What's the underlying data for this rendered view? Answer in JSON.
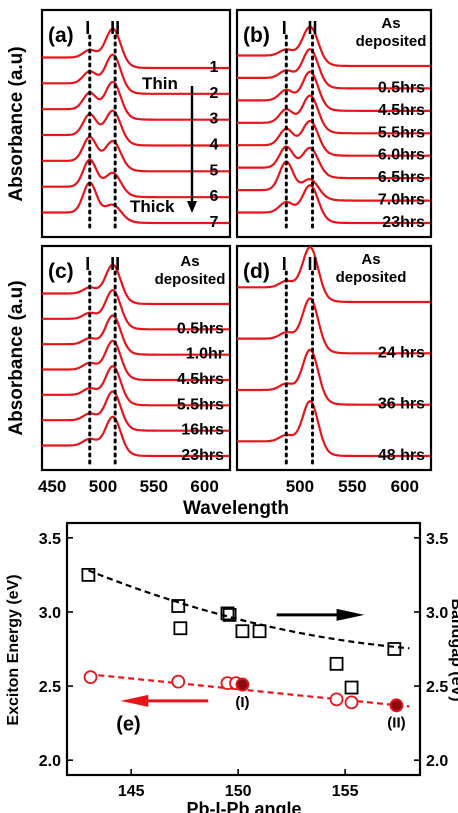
{
  "chart_data": [
    {
      "type": "line",
      "panel": "(a)",
      "peak_labels": [
        "I",
        "II"
      ],
      "series_labels": [
        "1",
        "2",
        "3",
        "4",
        "5",
        "6",
        "7"
      ],
      "annotations": [
        "Thin",
        "Thick"
      ],
      "peak_wavelengths": [
        487,
        512
      ],
      "xlim": [
        440,
        625
      ]
    },
    {
      "type": "line",
      "panel": "(b)",
      "peak_labels": [
        "I",
        "II"
      ],
      "series_labels": [
        "As\ndeposited",
        "0.5hrs",
        "4.5hrs",
        "5.5hrs",
        "6.0hrs",
        "6.5hrs",
        "7.0hrs",
        "23hrs"
      ],
      "peak_wavelengths": [
        487,
        512
      ],
      "xlim": [
        440,
        625
      ]
    },
    {
      "type": "line",
      "panel": "(c)",
      "peak_labels": [
        "I",
        "II"
      ],
      "series_labels": [
        "As\ndeposited",
        "0.5hrs",
        "1.0hr",
        "4.5hrs",
        "5.5hrs",
        "16hrs",
        "23hrs"
      ],
      "xlabel": "Wavelength",
      "ylabel": "Absorbance (a.u)",
      "xticks": [
        450,
        500,
        550,
        600
      ],
      "peak_wavelengths": [
        487,
        512
      ],
      "xlim": [
        440,
        625
      ]
    },
    {
      "type": "line",
      "panel": "(d)",
      "peak_labels": [
        "I",
        "II"
      ],
      "series_labels": [
        "As\ndeposited",
        "24 hrs",
        "36 hrs",
        "48 hrs"
      ],
      "xticks": [
        500,
        550,
        600
      ],
      "peak_wavelengths": [
        487,
        512
      ],
      "xlim": [
        440,
        625
      ]
    },
    {
      "type": "scatter",
      "panel": "(e)",
      "xlabel": "Pb-I-Pb angle",
      "ylabel": "Exciton Energy (eV)",
      "ylabel_right": "Bandgap (eV)",
      "xlim": [
        142,
        158.5
      ],
      "ylim": [
        1.9,
        3.6
      ],
      "xticks": [
        145,
        150,
        155
      ],
      "yticks": [
        2.0,
        2.5,
        3.0,
        3.5
      ],
      "yticks_right": [
        2.0,
        2.5,
        3.0,
        3.5
      ],
      "annotations": [
        "(I)",
        "(II)"
      ],
      "series": [
        {
          "marker": "square",
          "color": "#000000",
          "axis": "right",
          "x": [
            143.0,
            147.2,
            147.3,
            149.5,
            149.6,
            150.2,
            151.0,
            154.6,
            155.3,
            157.3
          ],
          "y": [
            3.25,
            3.04,
            2.89,
            2.99,
            2.98,
            2.87,
            2.87,
            2.65,
            2.49,
            2.75
          ]
        },
        {
          "marker": "circle",
          "color": "#e8141b",
          "axis": "left",
          "x": [
            143.1,
            147.2,
            149.5,
            149.9,
            150.2,
            154.6,
            155.3,
            157.4
          ],
          "y": [
            2.56,
            2.53,
            2.52,
            2.52,
            2.51,
            2.41,
            2.39,
            2.37
          ],
          "filled_x": [
            150.2,
            157.4
          ]
        }
      ],
      "fits": [
        {
          "color": "#000000",
          "x": [
            143,
            158
          ],
          "quad": [
            3.28,
            -0.0575,
            0.0015
          ]
        },
        {
          "color": "#e8141b",
          "x": [
            143,
            158
          ],
          "linear": [
            2.58,
            -0.0145
          ]
        }
      ]
    }
  ]
}
